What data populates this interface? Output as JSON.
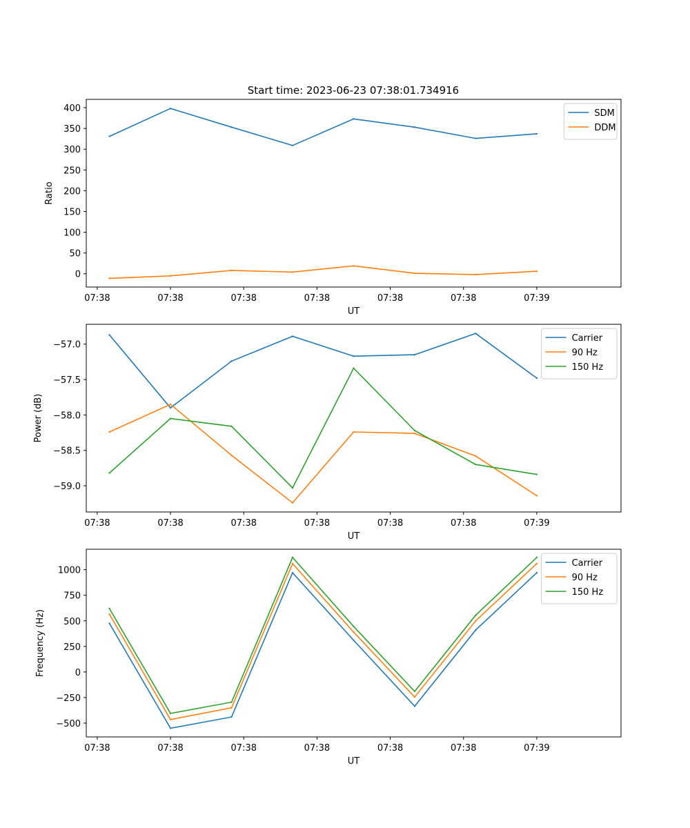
{
  "figure": {
    "title": "Start time: 2023-06-23 07:38:01.734916"
  },
  "colors": {
    "blue": "#1f77b4",
    "orange": "#ff7f0e",
    "green": "#2ca02c"
  },
  "chart_data": [
    {
      "type": "line",
      "title": "Start time: 2023-06-23 07:38:01.734916",
      "xlabel": "UT",
      "ylabel": "Ratio",
      "x": [
        0,
        1,
        2,
        3,
        4,
        5,
        6,
        7
      ],
      "xlim": [
        -0.38,
        8.38
      ],
      "xticks": [
        {
          "x": -0.2,
          "label": "07:38"
        },
        {
          "x": 1.0,
          "label": "07:38"
        },
        {
          "x": 2.2,
          "label": "07:38"
        },
        {
          "x": 3.4,
          "label": "07:38"
        },
        {
          "x": 4.6,
          "label": "07:38"
        },
        {
          "x": 5.8,
          "label": "07:38"
        },
        {
          "x": 7.0,
          "label": "07:39"
        }
      ],
      "ylim": [
        -32,
        420
      ],
      "yticks": [
        0,
        50,
        100,
        150,
        200,
        250,
        300,
        350,
        400
      ],
      "legend": "top-right",
      "grid": false,
      "series": [
        {
          "name": "SDM",
          "color": "#1f77b4",
          "values": [
            331,
            398,
            353,
            309,
            373,
            353,
            326,
            337
          ]
        },
        {
          "name": "DDM",
          "color": "#ff7f0e",
          "values": [
            -11,
            -5,
            8,
            4,
            19,
            1,
            -2,
            6
          ]
        }
      ]
    },
    {
      "type": "line",
      "xlabel": "UT",
      "ylabel": "Power (dB)",
      "x": [
        0,
        1,
        2,
        3,
        4,
        5,
        6,
        7
      ],
      "xlim": [
        -0.38,
        8.38
      ],
      "xticks": [
        {
          "x": -0.2,
          "label": "07:38"
        },
        {
          "x": 1.0,
          "label": "07:38"
        },
        {
          "x": 2.2,
          "label": "07:38"
        },
        {
          "x": 3.4,
          "label": "07:38"
        },
        {
          "x": 4.6,
          "label": "07:38"
        },
        {
          "x": 5.8,
          "label": "07:38"
        },
        {
          "x": 7.0,
          "label": "07:39"
        }
      ],
      "ylim": [
        -59.37,
        -56.72
      ],
      "yticks": [
        -57.0,
        -57.5,
        -58.0,
        -58.5,
        -59.0
      ],
      "ytick_labels": [
        "−57.0",
        "−57.5",
        "−58.0",
        "−58.5",
        "−59.0"
      ],
      "legend": "top-right",
      "grid": false,
      "series": [
        {
          "name": "Carrier",
          "color": "#1f77b4",
          "values": [
            -56.87,
            -57.9,
            -57.24,
            -56.89,
            -57.17,
            -57.15,
            -56.85,
            -57.48
          ]
        },
        {
          "name": "90 Hz",
          "color": "#ff7f0e",
          "values": [
            -58.24,
            -57.85,
            -58.57,
            -59.24,
            -58.24,
            -58.26,
            -58.58,
            -59.14
          ]
        },
        {
          "name": "150 Hz",
          "color": "#2ca02c",
          "values": [
            -58.82,
            -58.05,
            -58.16,
            -59.03,
            -57.34,
            -58.22,
            -58.7,
            -58.84
          ]
        }
      ]
    },
    {
      "type": "line",
      "xlabel": "UT",
      "ylabel": "Frequency (Hz)",
      "x": [
        0,
        1,
        2,
        3,
        4,
        5,
        6,
        7
      ],
      "xlim": [
        -0.38,
        8.38
      ],
      "xticks": [
        {
          "x": -0.2,
          "label": "07:38"
        },
        {
          "x": 1.0,
          "label": "07:38"
        },
        {
          "x": 2.2,
          "label": "07:38"
        },
        {
          "x": 3.4,
          "label": "07:38"
        },
        {
          "x": 4.6,
          "label": "07:38"
        },
        {
          "x": 5.8,
          "label": "07:38"
        },
        {
          "x": 7.0,
          "label": "07:39"
        }
      ],
      "ylim": [
        -635,
        1200
      ],
      "yticks": [
        -500,
        -250,
        0,
        250,
        500,
        750,
        1000
      ],
      "ytick_labels": [
        "−500",
        "−250",
        "0",
        "250",
        "500",
        "750",
        "1000"
      ],
      "legend": "top-right",
      "grid": false,
      "series": [
        {
          "name": "Carrier",
          "color": "#1f77b4",
          "values": [
            475,
            -550,
            -440,
            970,
            310,
            -335,
            410,
            970
          ]
        },
        {
          "name": "90 Hz",
          "color": "#ff7f0e",
          "values": [
            565,
            -465,
            -350,
            1060,
            390,
            -245,
            500,
            1060
          ]
        },
        {
          "name": "150 Hz",
          "color": "#2ca02c",
          "values": [
            620,
            -405,
            -295,
            1120,
            445,
            -190,
            555,
            1120
          ]
        }
      ]
    }
  ]
}
